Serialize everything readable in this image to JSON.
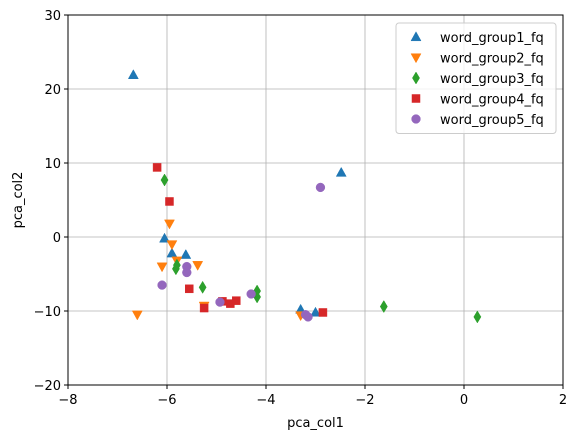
{
  "chart_data": {
    "type": "scatter",
    "title": "",
    "xlabel": "pca_col1",
    "ylabel": "pca_col2",
    "xlim": [
      -8,
      2
    ],
    "ylim": [
      -20,
      30
    ],
    "xticks": [
      -8,
      -6,
      -4,
      -2,
      0,
      2
    ],
    "yticks": [
      -20,
      -10,
      0,
      10,
      20,
      30
    ],
    "grid": true,
    "legend_position": "top-right",
    "series": [
      {
        "name": "word_group1_fq",
        "marker": "triangle-up",
        "color": "#1f77b4",
        "points": [
          {
            "x": -6.68,
            "y": 21.9
          },
          {
            "x": -6.05,
            "y": -0.2
          },
          {
            "x": -5.9,
            "y": -2.2
          },
          {
            "x": -5.62,
            "y": -2.4
          },
          {
            "x": -3.3,
            "y": -9.8
          },
          {
            "x": -3.0,
            "y": -10.2
          },
          {
            "x": -2.48,
            "y": 8.7
          }
        ]
      },
      {
        "name": "word_group2_fq",
        "marker": "triangle-down",
        "color": "#ff7f0e",
        "points": [
          {
            "x": -6.6,
            "y": -10.5
          },
          {
            "x": -6.1,
            "y": -4.0
          },
          {
            "x": -5.95,
            "y": 1.8
          },
          {
            "x": -5.9,
            "y": -1.0
          },
          {
            "x": -5.8,
            "y": -3.2
          },
          {
            "x": -5.38,
            "y": -3.8
          },
          {
            "x": -5.25,
            "y": -9.3
          },
          {
            "x": -3.3,
            "y": -10.6
          }
        ]
      },
      {
        "name": "word_group3_fq",
        "marker": "diamond",
        "color": "#2ca02c",
        "points": [
          {
            "x": -6.05,
            "y": 7.7
          },
          {
            "x": -5.82,
            "y": -4.3
          },
          {
            "x": -5.8,
            "y": -3.8
          },
          {
            "x": -5.28,
            "y": -6.8
          },
          {
            "x": -4.18,
            "y": -7.3
          },
          {
            "x": -4.18,
            "y": -8.1
          },
          {
            "x": -1.62,
            "y": -9.4
          },
          {
            "x": 0.27,
            "y": -10.8
          }
        ]
      },
      {
        "name": "word_group4_fq",
        "marker": "square",
        "color": "#d62728",
        "points": [
          {
            "x": -6.2,
            "y": 9.4
          },
          {
            "x": -5.95,
            "y": 4.8
          },
          {
            "x": -5.55,
            "y": -7.0
          },
          {
            "x": -5.25,
            "y": -9.6
          },
          {
            "x": -4.88,
            "y": -8.7
          },
          {
            "x": -4.72,
            "y": -9.0
          },
          {
            "x": -4.6,
            "y": -8.6
          },
          {
            "x": -2.85,
            "y": -10.2
          }
        ]
      },
      {
        "name": "word_group5_fq",
        "marker": "circle",
        "color": "#9467bd",
        "points": [
          {
            "x": -6.1,
            "y": -6.5
          },
          {
            "x": -5.6,
            "y": -4.0
          },
          {
            "x": -5.6,
            "y": -4.8
          },
          {
            "x": -4.93,
            "y": -8.8
          },
          {
            "x": -4.3,
            "y": -7.7
          },
          {
            "x": -3.2,
            "y": -10.5
          },
          {
            "x": -3.15,
            "y": -10.8
          },
          {
            "x": -2.9,
            "y": 6.7
          }
        ]
      }
    ]
  }
}
